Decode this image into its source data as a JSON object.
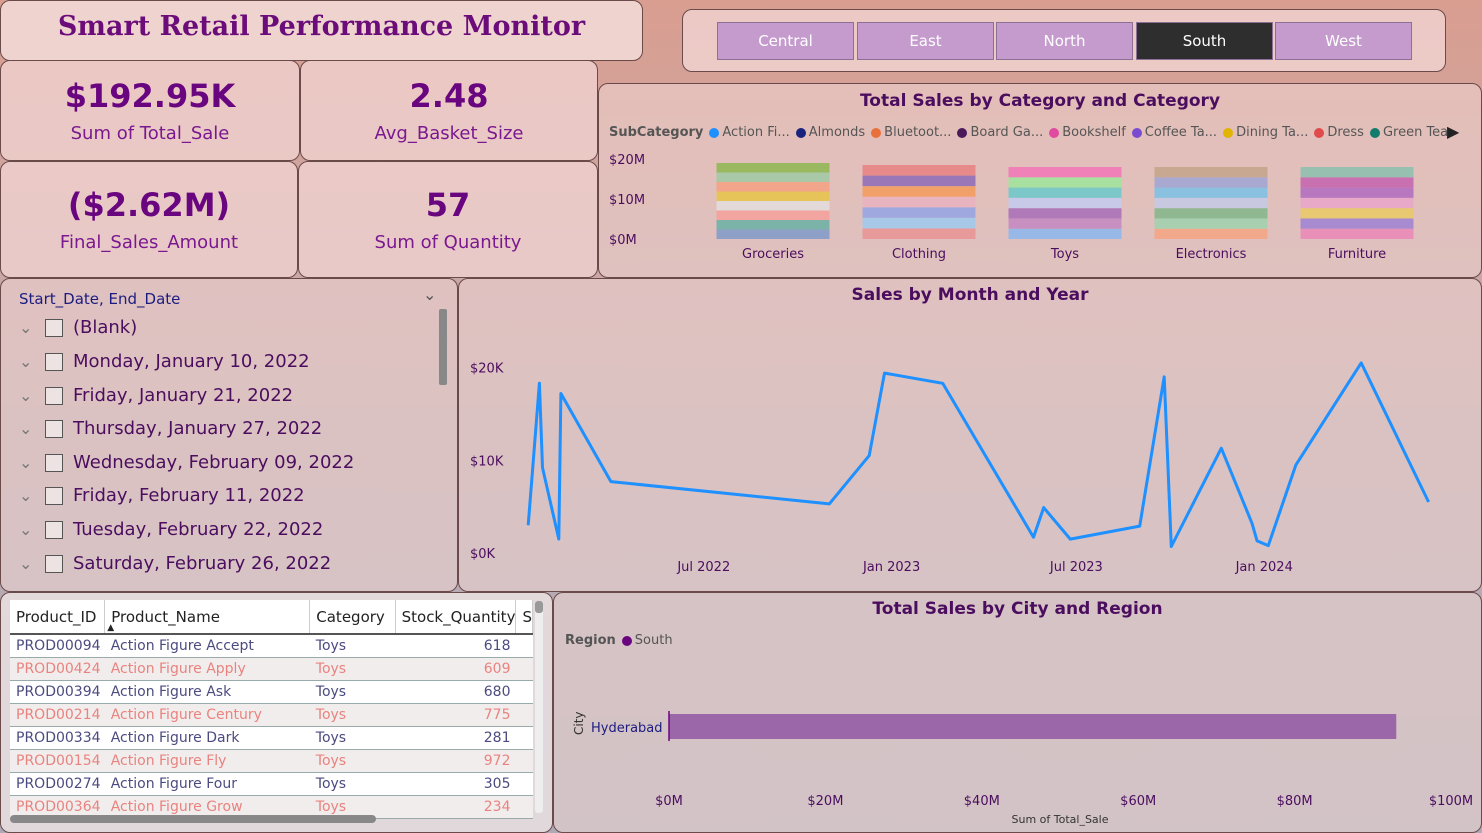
{
  "header": {
    "title": "Smart Retail Performance Monitor"
  },
  "region_slicer": {
    "buttons": [
      "Central",
      "East",
      "North",
      "South",
      "West"
    ],
    "selected": "South"
  },
  "kpis": [
    {
      "value": "$192.95K",
      "label": "Sum of Total_Sale"
    },
    {
      "value": "2.48",
      "label": "Avg_Basket_Size"
    },
    {
      "value": "($2.62M)",
      "label": "Final_Sales_Amount"
    },
    {
      "value": "57",
      "label": "Sum of Quantity"
    }
  ],
  "date_slicer": {
    "title": "Start_Date, End_Date",
    "items": [
      "(Blank)",
      "Monday, January 10, 2022",
      "Friday, January 21, 2022",
      "Thursday, January 27, 2022",
      "Wednesday, February 09, 2022",
      "Friday, February 11, 2022",
      "Tuesday, February 22, 2022",
      "Saturday, February 26, 2022"
    ]
  },
  "category_chart": {
    "title": "Total Sales by Category and Category",
    "legend_title": "SubCategory",
    "legend": [
      {
        "name": "Action Fi...",
        "color": "#1e90ff"
      },
      {
        "name": "Almonds",
        "color": "#1a237e"
      },
      {
        "name": "Bluetoot...",
        "color": "#e8703a"
      },
      {
        "name": "Board Ga...",
        "color": "#4a1a5a"
      },
      {
        "name": "Bookshelf",
        "color": "#e04aa0"
      },
      {
        "name": "Coffee Ta...",
        "color": "#7a4ad0"
      },
      {
        "name": "Dining Ta...",
        "color": "#e0b400"
      },
      {
        "name": "Dress",
        "color": "#e04a4a"
      },
      {
        "name": "Green Tea",
        "color": "#137a6e"
      }
    ],
    "y_ticks": [
      "$20M",
      "$10M",
      "$0M"
    ]
  },
  "chart_data": [
    {
      "type": "bar",
      "title": "Total Sales by Category and Category",
      "stacked": true,
      "categories": [
        "Groceries",
        "Clothing",
        "Toys",
        "Electronics",
        "Furniture"
      ],
      "values": [
        19,
        18.5,
        18,
        18,
        18
      ],
      "ylim": [
        0,
        20
      ],
      "y_ticks": [
        "$20M",
        "$10M",
        "$0M"
      ],
      "segments": [
        [
          "#8ea0c8",
          "#7cb3a8",
          "#f2a5a0",
          "#e2d9d8",
          "#e7c45a",
          "#f2a58a",
          "#a8c8a8",
          "#9ab860"
        ],
        [
          "#e89a9a",
          "#a8c8e8",
          "#a0a8e0",
          "#e8b4c0",
          "#f2a06a",
          "#9a78b8",
          "#e88a8a"
        ],
        [
          "#98b8e8",
          "#c890c0",
          "#b07ab8",
          "#c8c8e8",
          "#7cc8c8",
          "#a8e0a0",
          "#f080b8"
        ],
        [
          "#f2a88a",
          "#a8d0b0",
          "#90b890",
          "#c8c8e0",
          "#8ac0e0",
          "#a8a8d0",
          "#c8a890"
        ],
        [
          "#e890b8",
          "#a88ad0",
          "#e8c870",
          "#e8a8c8",
          "#b878c0",
          "#c870b0",
          "#98c0b0"
        ]
      ],
      "legend_position": "top"
    },
    {
      "type": "line",
      "title": "Sales by Month and Year",
      "x_ticks": [
        "Jul 2022",
        "Jan 2023",
        "Jul 2023",
        "Jan 2024"
      ],
      "y_ticks": [
        "$20K",
        "$10K",
        "$0K"
      ],
      "ylim": [
        0,
        22000
      ],
      "x": [
        "2022-01-10",
        "2022-01-21",
        "2022-01-24",
        "2022-02-09",
        "2022-02-11",
        "2022-04-01",
        "2022-11-01",
        "2022-12-10",
        "2022-12-25",
        "2023-02-20",
        "2023-05-20",
        "2023-05-30",
        "2023-06-25",
        "2023-09-01",
        "2023-09-25",
        "2023-10-02",
        "2023-11-20",
        "2023-12-20",
        "2023-12-25",
        "2024-01-05",
        "2024-02-01",
        "2024-04-05",
        "2024-06-10"
      ],
      "series": [
        {
          "values": [
            3000,
            18300,
            9200,
            1500,
            17200,
            7700,
            5300,
            10500,
            19400,
            18300,
            1700,
            4900,
            1500,
            2900,
            19000,
            700,
            11300,
            3200,
            1300,
            800,
            9500,
            20500,
            5500
          ],
          "color": "#1e90ff"
        }
      ]
    },
    {
      "type": "bar",
      "orientation": "horizontal",
      "title": "Total Sales by City and Region",
      "legend_title": "Region",
      "legend": [
        {
          "name": "South",
          "color": "#6a0580"
        }
      ],
      "categories": [
        "Hyderabad"
      ],
      "values": [
        93
      ],
      "xlim": [
        0,
        100
      ],
      "x_ticks": [
        "$0M",
        "$20M",
        "$40M",
        "$60M",
        "$80M",
        "$100M"
      ],
      "xlabel": "Sum of Total_Sale",
      "ylabel": "City",
      "bar_color": "#9b67a8"
    }
  ],
  "line_chart": {
    "title": "Sales by Month and Year",
    "x_ticks": [
      "Jul 2022",
      "Jan 2023",
      "Jul 2023",
      "Jan 2024"
    ],
    "y_ticks": [
      "$20K",
      "$10K",
      "$0K"
    ]
  },
  "city_chart": {
    "title": "Total Sales by City and Region",
    "legend_title": "Region",
    "legend_item": "South",
    "city": "Hyderabad",
    "y_axis": "City",
    "x_axis": "Sum of Total_Sale",
    "x_ticks": [
      "$0M",
      "$20M",
      "$40M",
      "$60M",
      "$80M",
      "$100M"
    ]
  },
  "product_table": {
    "columns": [
      "Product_ID",
      "Product_Name",
      "Category",
      "Stock_Quantity",
      "S"
    ],
    "rows": [
      [
        "PROD00094",
        "Action Figure Accept",
        "Toys",
        "618"
      ],
      [
        "PROD00424",
        "Action Figure Apply",
        "Toys",
        "609"
      ],
      [
        "PROD00394",
        "Action Figure Ask",
        "Toys",
        "680"
      ],
      [
        "PROD00214",
        "Action Figure Century",
        "Toys",
        "775"
      ],
      [
        "PROD00334",
        "Action Figure Dark",
        "Toys",
        "281"
      ],
      [
        "PROD00154",
        "Action Figure Fly",
        "Toys",
        "972"
      ],
      [
        "PROD00274",
        "Action Figure Four",
        "Toys",
        "305"
      ],
      [
        "PROD00364",
        "Action Figure Grow",
        "Toys",
        "234"
      ]
    ]
  }
}
